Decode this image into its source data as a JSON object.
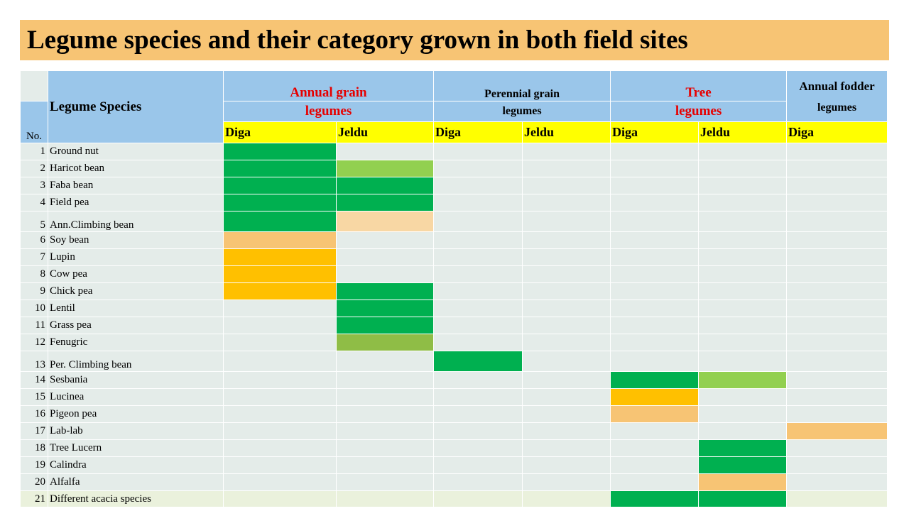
{
  "title": "Legume species and their category grown in both field sites",
  "header": {
    "no_label": "No.",
    "species_label": "Legume Species",
    "categories": [
      {
        "line1": "Annual grain",
        "line2": "legumes",
        "style": "red"
      },
      {
        "line1": "Perennial grain",
        "line2": "legumes",
        "style": "black"
      },
      {
        "line1": "Tree",
        "line2": "legumes",
        "style": "red"
      },
      {
        "line1": "Annual fodder",
        "line2": "legumes",
        "style": "black-lg"
      }
    ],
    "sites": [
      "Diga",
      "Jeldu",
      "Diga",
      "Jeldu",
      "Diga",
      "Jeldu",
      "Diga"
    ]
  },
  "colors": {
    "G": "#00b050",
    "L": "#92d050",
    "O": "#8fbd46",
    "Y": "#ffc000",
    "P": "#f7c474",
    "E": "#f8d7a4"
  },
  "rows": [
    {
      "no": "1",
      "name": "Ground nut",
      "cells": [
        "G",
        "",
        "",
        "",
        "",
        "",
        ""
      ]
    },
    {
      "no": "2",
      "name": "Haricot bean",
      "cells": [
        "G",
        "L",
        "",
        "",
        "",
        "",
        ""
      ]
    },
    {
      "no": "3",
      "name": "Faba bean",
      "cells": [
        "G",
        "G",
        "",
        "",
        "",
        "",
        ""
      ]
    },
    {
      "no": "4",
      "name": "Field pea",
      "cells": [
        "G",
        "G",
        "",
        "",
        "",
        "",
        ""
      ]
    },
    {
      "no": "5",
      "name": "Ann.Climbing bean",
      "cells": [
        "G",
        "E",
        "",
        "",
        "",
        "",
        ""
      ]
    },
    {
      "no": "6",
      "name": "Soy bean",
      "cells": [
        "P",
        "",
        "",
        "",
        "",
        "",
        ""
      ]
    },
    {
      "no": "7",
      "name": "Lupin",
      "cells": [
        "Y",
        "",
        "",
        "",
        "",
        "",
        ""
      ]
    },
    {
      "no": "8",
      "name": "Cow pea",
      "cells": [
        "Y",
        "",
        "",
        "",
        "",
        "",
        ""
      ]
    },
    {
      "no": "9",
      "name": "Chick pea",
      "cells": [
        "Y",
        "G",
        "",
        "",
        "",
        "",
        ""
      ]
    },
    {
      "no": "10",
      "name": "Lentil",
      "cells": [
        "",
        "G",
        "",
        "",
        "",
        "",
        ""
      ]
    },
    {
      "no": "11",
      "name": "Grass pea",
      "cells": [
        "",
        "G",
        "",
        "",
        "",
        "",
        ""
      ]
    },
    {
      "no": "12",
      "name": "Fenugric",
      "cells": [
        "",
        "O",
        "",
        "",
        "",
        "",
        ""
      ]
    },
    {
      "no": "13",
      "name": "Per. Climbing bean",
      "cells": [
        "",
        "",
        "G",
        "",
        "",
        "",
        ""
      ]
    },
    {
      "no": "14",
      "name": "Sesbania",
      "cells": [
        "",
        "",
        "",
        "",
        "G",
        "L",
        ""
      ]
    },
    {
      "no": "15",
      "name": "Lucinea",
      "cells": [
        "",
        "",
        "",
        "",
        "Y",
        "",
        ""
      ]
    },
    {
      "no": "16",
      "name": "Pigeon pea",
      "cells": [
        "",
        "",
        "",
        "",
        "P",
        "",
        ""
      ]
    },
    {
      "no": "17",
      "name": "Lab-lab",
      "cells": [
        "",
        "",
        "",
        "",
        "",
        "",
        "P"
      ]
    },
    {
      "no": "18",
      "name": "Tree Lucern",
      "cells": [
        "",
        "",
        "",
        "",
        "",
        "G",
        ""
      ]
    },
    {
      "no": "19",
      "name": "Calindra",
      "cells": [
        "",
        "",
        "",
        "",
        "",
        "G",
        ""
      ]
    },
    {
      "no": "20",
      "name": "Alfalfa",
      "cells": [
        "",
        "",
        "",
        "",
        "",
        "P",
        ""
      ]
    },
    {
      "no": "21",
      "name": "Different acacia species",
      "cells": [
        "",
        "",
        "",
        "",
        "G",
        "G",
        ""
      ]
    }
  ]
}
